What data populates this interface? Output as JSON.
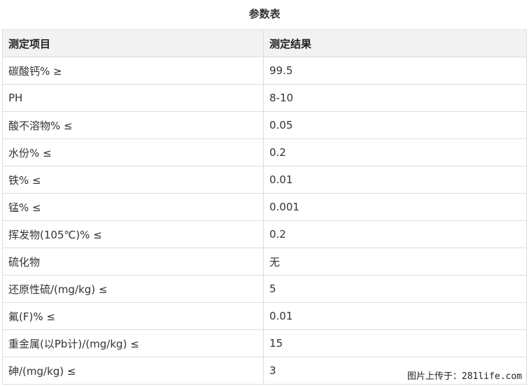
{
  "title": "参数表",
  "table": {
    "headers": [
      "测定项目",
      "测定结果"
    ],
    "rows": [
      [
        "碳酸钙% ≥",
        "99.5"
      ],
      [
        "PH",
        "8-10"
      ],
      [
        "酸不溶物% ≤",
        "0.05"
      ],
      [
        "水份% ≤",
        "0.2"
      ],
      [
        "铁% ≤",
        "0.01"
      ],
      [
        "锰% ≤",
        "0.001"
      ],
      [
        "挥发物(105℃)% ≤",
        "0.2"
      ],
      [
        "硫化物",
        "无"
      ],
      [
        "还原性硫/(mg/kg) ≤",
        "5"
      ],
      [
        "氟(F)% ≤",
        "0.01"
      ],
      [
        "重金属(以Pb计)/(mg/kg) ≤",
        "15"
      ],
      [
        "砷/(mg/kg) ≤",
        "3"
      ]
    ]
  },
  "watermark": "图片上传于：281life.com"
}
